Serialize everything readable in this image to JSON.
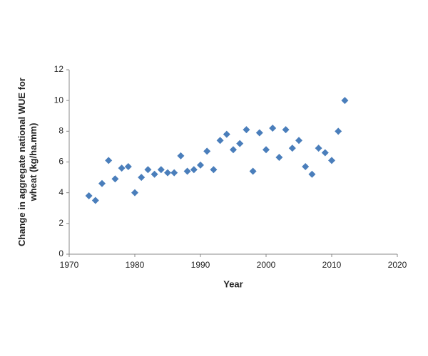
{
  "chart_data": {
    "type": "scatter",
    "x_label": "Year",
    "y_label": "Change in aggregate national WUE for wheat (kg/ha.mm)",
    "x": [
      1973,
      1974,
      1975,
      1976,
      1977,
      1978,
      1979,
      1980,
      1981,
      1982,
      1983,
      1984,
      1985,
      1986,
      1987,
      1988,
      1989,
      1990,
      1991,
      1992,
      1993,
      1994,
      1995,
      1996,
      1997,
      1998,
      1999,
      2000,
      2001,
      2002,
      2003,
      2004,
      2005,
      2006,
      2007,
      2008,
      2009,
      2010,
      2011,
      2012
    ],
    "values": [
      3.8,
      3.5,
      4.6,
      6.1,
      4.9,
      5.6,
      5.7,
      4.0,
      5.0,
      5.5,
      5.2,
      5.5,
      5.3,
      5.3,
      6.4,
      5.4,
      5.5,
      5.8,
      6.7,
      5.5,
      7.4,
      7.8,
      6.8,
      7.2,
      8.1,
      5.4,
      7.9,
      6.8,
      8.2,
      6.3,
      8.1,
      6.9,
      7.4,
      5.7,
      5.2,
      6.9,
      6.6,
      6.1,
      8.0,
      10.0
    ],
    "color": "#4a7ebb",
    "xlim": [
      1970,
      2020
    ],
    "xticks": [
      1970,
      1980,
      1990,
      2000,
      2010,
      2020
    ],
    "ylim": [
      0,
      12
    ],
    "yticks": [
      0,
      2,
      4,
      6,
      8,
      10,
      12
    ],
    "grid": false
  }
}
